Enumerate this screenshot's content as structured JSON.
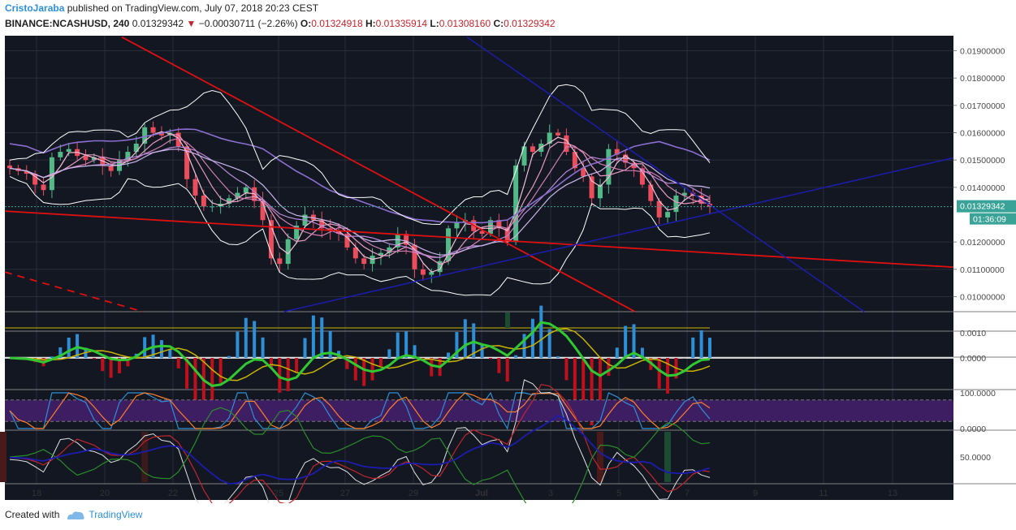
{
  "header": {
    "author": "CristoJaraba",
    "published_text": "published on TradingView.com, July 07, 2018 20:23 CEST",
    "symbol": "BINANCE:NCASHUSD, 240",
    "last": "0.01329342",
    "change": "−0.00030711 (−2.26%)",
    "o_label": "O:",
    "o": "0.01324918",
    "h_label": "H:",
    "h": "0.01335914",
    "l_label": "L:",
    "l": "0.01308160",
    "c_label": "C:",
    "c": "0.01329342"
  },
  "footer": {
    "created_with": "Created with",
    "brand": "TradingView"
  },
  "colors": {
    "background": "#131722",
    "grid": "#2a2e39",
    "axis_text": "#4a4a4a",
    "up": "#53b987",
    "down": "#eb4d5c",
    "trend_red": "#e01010",
    "trend_blue": "#1c1caf",
    "macd_line": "#32c832",
    "signal_line": "#c8b400",
    "stoch_k": "#2f8fd6",
    "stoch_d": "#ff7f2a",
    "rsi_band": "#3e1e62",
    "price_label_bg": "#3aa397"
  },
  "chart_data": {
    "type": "candlestick",
    "symbol": "BINANCE:NCASHUSD",
    "interval": "240",
    "x_tick_labels": [
      "18",
      "20",
      "22",
      "25",
      "27",
      "29",
      "Jul",
      "3",
      "5",
      "7",
      "9",
      "11",
      "13"
    ],
    "y_tick_labels": [
      "0.01900000",
      "0.01800000",
      "0.01700000",
      "0.01600000",
      "0.01500000",
      "0.01400000",
      "0.01200000",
      "0.01100000",
      "0.01000000"
    ],
    "ylim": [
      0.00945,
      0.01955
    ],
    "last_price_label": "0.01329342",
    "countdown_label": "01:36:09",
    "candles_close_path": [
      0.0147,
      0.0146,
      0.0145,
      0.0141,
      0.0139,
      0.0151,
      0.0153,
      0.0154,
      0.01515,
      0.015,
      0.0151,
      0.0148,
      0.0146,
      0.015,
      0.0153,
      0.0156,
      0.0162,
      0.016,
      0.0159,
      0.016,
      0.0155,
      0.0143,
      0.0137,
      0.0133,
      0.0133,
      0.0134,
      0.0136,
      0.0138,
      0.014,
      0.0135,
      0.0128,
      0.0114,
      0.0112,
      0.0121,
      0.0126,
      0.013,
      0.0128,
      0.0125,
      0.0124,
      0.0123,
      0.0118,
      0.0114,
      0.0112,
      0.0115,
      0.0116,
      0.0118,
      0.0123,
      0.0119,
      0.011,
      0.0108,
      0.0109,
      0.0113,
      0.0125,
      0.0127,
      0.0128,
      0.0124,
      0.0123,
      0.0128,
      0.0125,
      0.012,
      0.0148,
      0.0155,
      0.0153,
      0.0156,
      0.016,
      0.0159,
      0.0153,
      0.0147,
      0.0144,
      0.0136,
      0.0141,
      0.0154,
      0.0152,
      0.0149,
      0.0147,
      0.0141,
      0.0135,
      0.0129,
      0.0131,
      0.0137,
      0.0138,
      0.0137,
      0.0134,
      0.01329
    ],
    "macd": {
      "axis_labels": [
        "0.0010",
        "0.0000"
      ]
    },
    "stoch_rsi": {
      "axis_labels": [
        "100.0000",
        "0.0000"
      ]
    },
    "rsi": {
      "axis_labels": [
        "50.0000"
      ]
    }
  }
}
